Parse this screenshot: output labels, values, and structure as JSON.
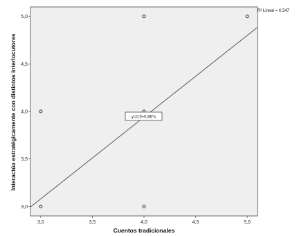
{
  "chart_data": {
    "type": "scatter",
    "xlabel": "Cuentos tradicionales",
    "ylabel": "Interactúa estratégicamente con distintos interlocutores",
    "xlim": [
      2.9,
      5.1
    ],
    "ylim": [
      2.9,
      5.1
    ],
    "x_ticks": [
      "3,0",
      "3,5",
      "4,0",
      "4,5",
      "5,0"
    ],
    "y_ticks": [
      "3,0",
      "3,5",
      "4,0",
      "4,5",
      "5,0"
    ],
    "points": [
      {
        "x": 3.0,
        "y": 3.0
      },
      {
        "x": 3.0,
        "y": 4.0
      },
      {
        "x": 4.0,
        "y": 3.0
      },
      {
        "x": 4.0,
        "y": 4.0
      },
      {
        "x": 4.0,
        "y": 5.0
      },
      {
        "x": 5.0,
        "y": 5.0
      }
    ],
    "fit_line": {
      "intercept": 0.5,
      "slope": 0.86,
      "equation_label": "y=0,5+0,86*x",
      "r2_label": "R² Lineal = 0,547"
    },
    "grid": false,
    "legend": "none",
    "colors": {
      "plot_background": "#efefef",
      "line": "#555555",
      "points": "#333333"
    }
  }
}
